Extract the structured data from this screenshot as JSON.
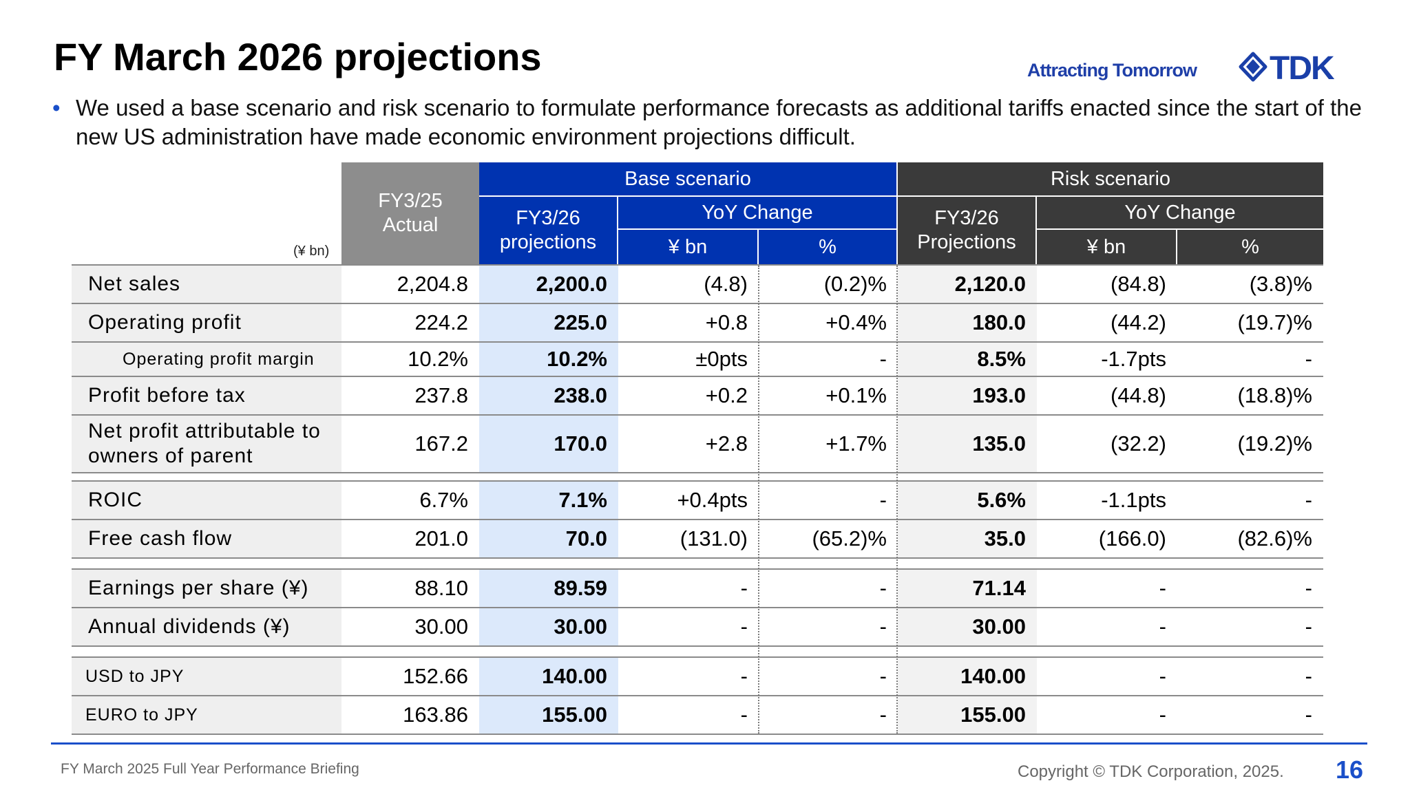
{
  "header": {
    "title": "FY March 2026 projections",
    "tagline": "Attracting Tomorrow",
    "logo_text": "TDK",
    "logo_icon": "tdk-emblem-icon",
    "accent_color": "#1a4fc9"
  },
  "bullet": "We used a base scenario and risk scenario to formulate performance forecasts as additional tariffs enacted since the start of the new US administration have made economic environment projections difficult.",
  "table": {
    "unit": "(¥ bn)",
    "header": {
      "actual_line1": "FY3/25",
      "actual_line2": "Actual",
      "base_group": "Base scenario",
      "risk_group": "Risk scenario",
      "base_proj_line1": "FY3/26",
      "base_proj_line2": "projections",
      "risk_proj_line1": "FY3/26",
      "risk_proj_line2": "Projections",
      "yoy": "YoY Change",
      "bn": "¥ bn",
      "pct": "%"
    },
    "rows": [
      {
        "label": "Net sales",
        "actual": "2,204.8",
        "base": "2,200.0",
        "base_bn": "(4.8)",
        "base_pct": "(0.2)%",
        "risk": "2,120.0",
        "risk_bn": "(84.8)",
        "risk_pct": "(3.8)%"
      },
      {
        "label": "Operating profit",
        "actual": "224.2",
        "base": "225.0",
        "base_bn": "+0.8",
        "base_pct": "+0.4%",
        "risk": "180.0",
        "risk_bn": "(44.2)",
        "risk_pct": "(19.7)%"
      },
      {
        "label": "Operating profit margin",
        "actual": "10.2%",
        "base": "10.2%",
        "base_bn": "±0pts",
        "base_pct": "-",
        "risk": "8.5%",
        "risk_bn": "-1.7pts",
        "risk_pct": "-"
      },
      {
        "label": "Profit before tax",
        "actual": "237.8",
        "base": "238.0",
        "base_bn": "+0.2",
        "base_pct": "+0.1%",
        "risk": "193.0",
        "risk_bn": "(44.8)",
        "risk_pct": "(18.8)%"
      },
      {
        "label": "Net profit attributable to owners of parent",
        "actual": "167.2",
        "base": "170.0",
        "base_bn": "+2.8",
        "base_pct": "+1.7%",
        "risk": "135.0",
        "risk_bn": "(32.2)",
        "risk_pct": "(19.2)%"
      },
      {
        "label": "ROIC",
        "actual": "6.7%",
        "base": "7.1%",
        "base_bn": "+0.4pts",
        "base_pct": "-",
        "risk": "5.6%",
        "risk_bn": "-1.1pts",
        "risk_pct": "-"
      },
      {
        "label": "Free cash flow",
        "actual": "201.0",
        "base": "70.0",
        "base_bn": "(131.0)",
        "base_pct": "(65.2)%",
        "risk": "35.0",
        "risk_bn": "(166.0)",
        "risk_pct": "(82.6)%"
      },
      {
        "label": "Earnings per share (¥)",
        "actual": "88.10",
        "base": "89.59",
        "base_bn": "-",
        "base_pct": "-",
        "risk": "71.14",
        "risk_bn": "-",
        "risk_pct": "-"
      },
      {
        "label": "Annual dividends (¥)",
        "actual": "30.00",
        "base": "30.00",
        "base_bn": "-",
        "base_pct": "-",
        "risk": "30.00",
        "risk_bn": "-",
        "risk_pct": "-"
      },
      {
        "label": "USD to JPY",
        "actual": "152.66",
        "base": "140.00",
        "base_bn": "-",
        "base_pct": "-",
        "risk": "140.00",
        "risk_bn": "-",
        "risk_pct": "-"
      },
      {
        "label": "EURO to JPY",
        "actual": "163.86",
        "base": "155.00",
        "base_bn": "-",
        "base_pct": "-",
        "risk": "155.00",
        "risk_bn": "-",
        "risk_pct": "-"
      }
    ]
  },
  "footer": {
    "left": "FY March 2025 Full Year Performance Briefing",
    "copyright": "Copyright © TDK Corporation, 2025.",
    "page": "16"
  }
}
